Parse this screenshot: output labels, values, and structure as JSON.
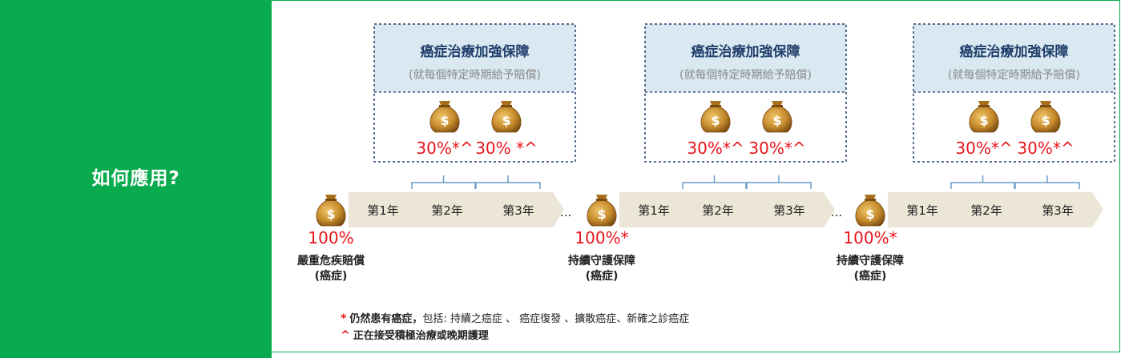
{
  "left_title": "如何應用?",
  "box_title": "癌症治療加強保障",
  "box_subtitle": "(就每個特定時期給予賠償)",
  "groups": [
    {
      "pcts": [
        "30%*^",
        "30% *^"
      ],
      "start_pct": "100%",
      "start_label_1": "嚴重危疾賠償",
      "start_label_2": "(癌症)",
      "years": [
        "第1年",
        "第2年",
        "第3年"
      ],
      "ellipsis": "..."
    },
    {
      "pcts": [
        "30%*^",
        "30%*^"
      ],
      "start_pct": "100%*",
      "start_label_1": "持續守護保障",
      "start_label_2": "(癌症)",
      "years": [
        "第1年",
        "第2年",
        "第3年"
      ],
      "ellipsis": "..."
    },
    {
      "pcts": [
        "30%*^",
        "30%*^"
      ],
      "start_pct": "100%*",
      "start_label_1": "持續守護保障",
      "start_label_2": "(癌症)",
      "years": [
        "第1年",
        "第2年",
        "第3年"
      ],
      "ellipsis": ""
    }
  ],
  "notes": {
    "n1_mark": "*",
    "n1_bold": "仍然患有癌症，",
    "n1_text": "包括: 持續之癌症 、 癌症復發 、擴散癌症、新確之診癌症",
    "n2_mark": "^",
    "n2_bold": "正在接受積極治療或晚期護理"
  },
  "colors": {
    "green": "#0aab4f",
    "box_fill": "#dae8f1",
    "box_border": "#1f3e6b",
    "arrow": "#ece6d6",
    "red": "#e8141b",
    "bag": "#c58a2b",
    "bracket": "#6d9ac8"
  },
  "icons": [
    "money-bag-icon"
  ]
}
